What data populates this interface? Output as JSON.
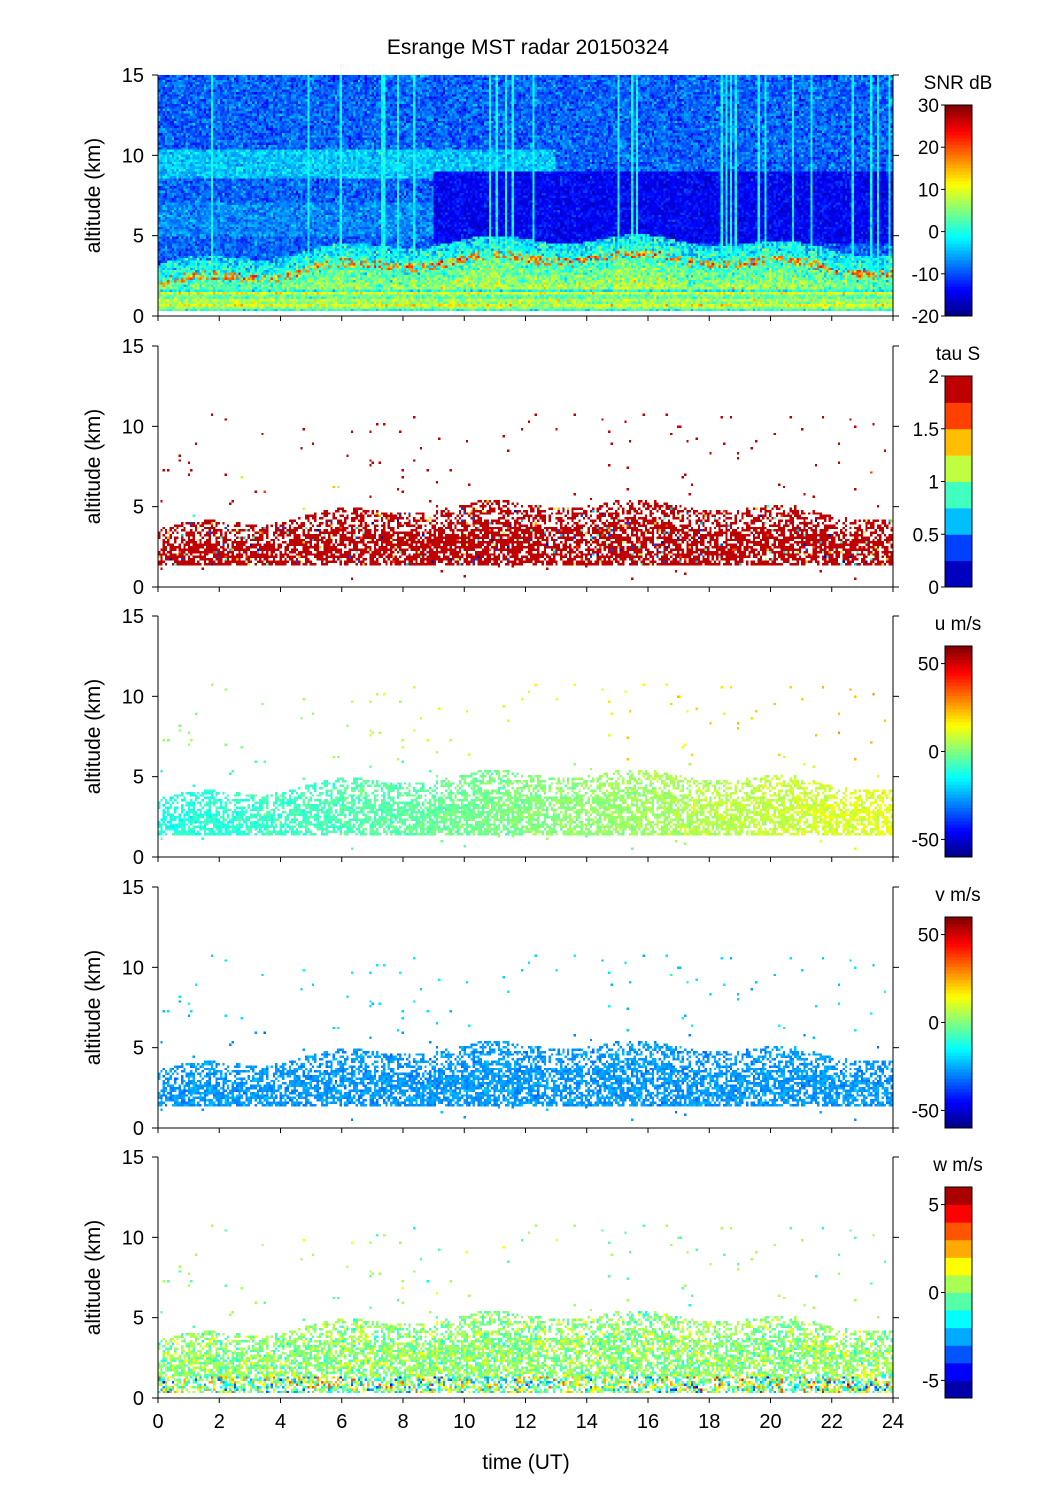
{
  "chart_data": {
    "type": "heatmap",
    "title": "Esrange MST radar 20150324",
    "xlabel": "time (UT)",
    "xlim": [
      0,
      24
    ],
    "xticks": [
      "0",
      "2",
      "4",
      "6",
      "8",
      "10",
      "12",
      "14",
      "16",
      "18",
      "20",
      "22",
      "24"
    ],
    "ylabel": "altitude (km)",
    "ylim": [
      0,
      15
    ],
    "yticks": [
      "0",
      "5",
      "10",
      "15"
    ],
    "colormap": "jet",
    "panels": [
      {
        "name": "snr",
        "colorbar_label": "SNR dB",
        "clim": [
          -20,
          30
        ],
        "levels": 64,
        "cbar_ticks": [
          {
            "v": 30,
            "t": "30"
          },
          {
            "v": 20,
            "t": "20"
          },
          {
            "v": 10,
            "t": "10"
          },
          {
            "v": 0,
            "t": "0"
          },
          {
            "v": -10,
            "t": "-10"
          },
          {
            "v": -20,
            "t": "-20"
          }
        ],
        "description_values": {
          "background_db": -10,
          "lower_layer_db": 12,
          "quiet_region_db": -14
        }
      },
      {
        "name": "tau",
        "colorbar_label": "tau S",
        "clim": [
          0,
          2
        ],
        "levels": 8,
        "cbar_ticks": [
          {
            "v": 2,
            "t": "2"
          },
          {
            "v": 1.5,
            "t": "1.5"
          },
          {
            "v": 1,
            "t": "1"
          },
          {
            "v": 0.5,
            "t": "0.5"
          },
          {
            "v": 0,
            "t": "0"
          }
        ],
        "description_values": {
          "typical": 2
        }
      },
      {
        "name": "u",
        "colorbar_label": "u m/s",
        "clim": [
          -60,
          60
        ],
        "levels": 64,
        "cbar_ticks": [
          {
            "v": 50,
            "t": "50"
          },
          {
            "v": 0,
            "t": "0"
          },
          {
            "v": -50,
            "t": "-50"
          }
        ],
        "description_values": {
          "typical_start": -10,
          "typical_end": 12
        }
      },
      {
        "name": "v",
        "colorbar_label": "v m/s",
        "clim": [
          -60,
          60
        ],
        "levels": 64,
        "cbar_ticks": [
          {
            "v": 50,
            "t": "50"
          },
          {
            "v": 0,
            "t": "0"
          },
          {
            "v": -50,
            "t": "-50"
          }
        ],
        "description_values": {
          "typical": -25
        }
      },
      {
        "name": "w",
        "colorbar_label": "w m/s",
        "clim": [
          -6,
          6
        ],
        "levels": 12,
        "cbar_ticks": [
          {
            "v": 5,
            "t": "5"
          },
          {
            "v": 0,
            "t": "0"
          },
          {
            "v": -5,
            "t": "-5"
          }
        ],
        "description_values": {
          "typical": 0
        }
      }
    ]
  }
}
